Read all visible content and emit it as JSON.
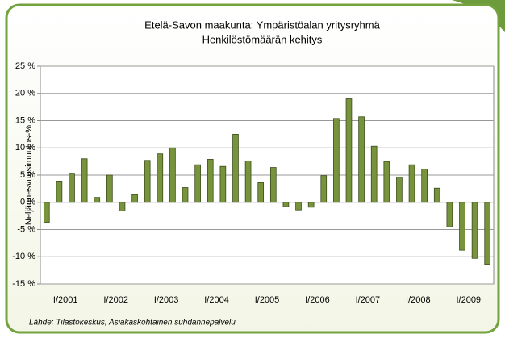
{
  "chart_data": {
    "type": "bar",
    "title": "Etelä-Savon maakunta: Ympäristöalan yritysryhmä",
    "subtitle": "Henkilöstömäärän kehitys",
    "y_label": "Neljännesvuosimuutos-%",
    "source": "Lähde: Tilastokeskus, Asiakaskohtainen suhdannepalvelu",
    "categories": [
      "I/2001",
      null,
      null,
      null,
      "I/2002",
      null,
      null,
      null,
      "I/2003",
      null,
      null,
      null,
      "I/2004",
      null,
      null,
      null,
      "I/2005",
      null,
      null,
      null,
      "I/2006",
      null,
      null,
      null,
      "I/2007",
      null,
      null,
      null,
      "I/2008",
      null,
      null,
      null,
      "I/2009",
      null,
      null,
      null
    ],
    "values": [
      -3.7,
      3.9,
      5.2,
      8.0,
      0.9,
      5.0,
      -1.6,
      1.4,
      7.7,
      8.9,
      10.0,
      2.7,
      6.9,
      7.9,
      6.6,
      12.5,
      7.6,
      3.6,
      6.4,
      -0.8,
      -1.4,
      -0.9,
      4.9,
      15.4,
      19.0,
      15.7,
      10.3,
      7.5,
      4.6,
      6.9,
      6.1,
      2.6,
      -4.5,
      -8.8,
      -10.3,
      -11.4
    ],
    "color": "#77933c",
    "ylim": [
      -15,
      25
    ],
    "yticks": [
      {
        "value": -15,
        "label": "-15 %"
      },
      {
        "value": -10,
        "label": "-10 %"
      },
      {
        "value": -5,
        "label": "-5 %"
      },
      {
        "value": 0,
        "label": "0 %"
      },
      {
        "value": 5,
        "label": "5 %"
      },
      {
        "value": 10,
        "label": "10 %"
      },
      {
        "value": 15,
        "label": "15 %"
      },
      {
        "value": 20,
        "label": "20 %"
      },
      {
        "value": 25,
        "label": "25 %"
      }
    ],
    "grid": true
  }
}
